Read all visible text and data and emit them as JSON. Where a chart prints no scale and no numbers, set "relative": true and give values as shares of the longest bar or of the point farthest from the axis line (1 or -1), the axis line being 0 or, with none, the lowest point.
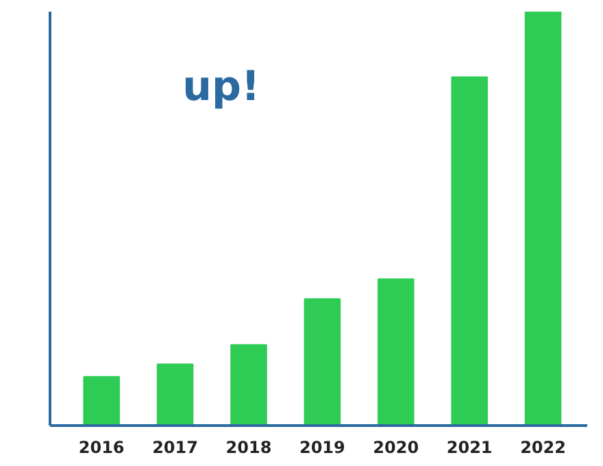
{
  "chart_data": {
    "type": "bar",
    "relative": true,
    "categories": [
      "2016",
      "2017",
      "2018",
      "2019",
      "2020",
      "2021",
      "2022"
    ],
    "values": [
      0.118,
      0.148,
      0.195,
      0.306,
      0.354,
      0.842,
      1
    ],
    "color": "#2ecc55",
    "annotations": [
      "up!"
    ],
    "grid": false
  }
}
